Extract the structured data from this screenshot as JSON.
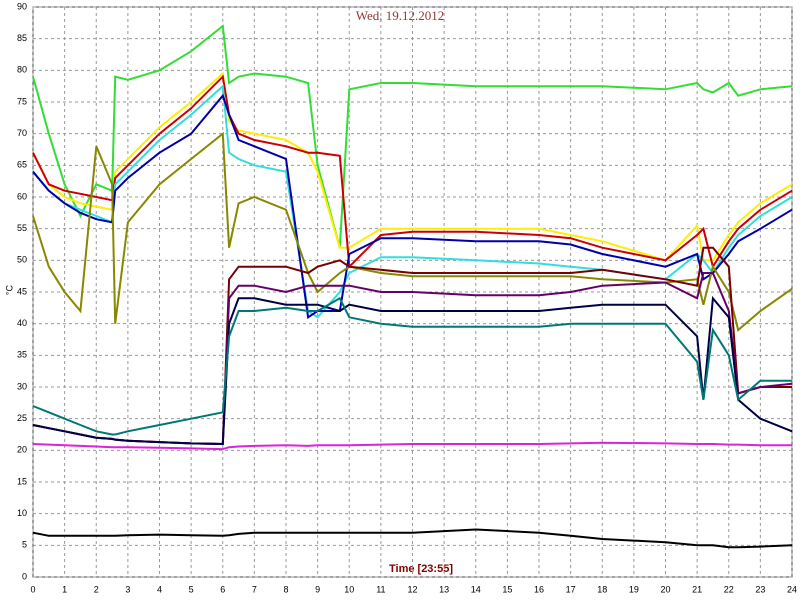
{
  "chart_data": {
    "type": "line",
    "title": "Wed, 19.12.2012",
    "xlabel": "Time [23:55]",
    "ylabel": "°C",
    "x": [
      0,
      0.5,
      1,
      1.5,
      2,
      2.5,
      2.6,
      3,
      4,
      5,
      6,
      6.2,
      6.5,
      7,
      8,
      8.7,
      9,
      9.7,
      10,
      11,
      12,
      14,
      16,
      17,
      18,
      20,
      21,
      21.2,
      21.5,
      22,
      22.3,
      23,
      24
    ],
    "series": [
      {
        "color": "#33dd33",
        "values": [
          79,
          70,
          62,
          57,
          62,
          61,
          79,
          78.5,
          80,
          83,
          87,
          78,
          79,
          79.5,
          79,
          78,
          65,
          52,
          77,
          78,
          78,
          77.5,
          77.5,
          77.5,
          77.5,
          77,
          78,
          77,
          76.5,
          78,
          76,
          77,
          77.5
        ]
      },
      {
        "color": "#ffee00",
        "values": [
          67,
          62,
          60,
          59,
          58.5,
          58,
          64,
          66,
          71,
          75,
          79.5,
          72,
          70.5,
          70,
          69,
          67,
          64,
          52,
          52,
          55,
          55,
          55,
          55,
          54,
          53,
          50,
          55.5,
          50,
          50,
          54,
          56,
          59,
          62
        ]
      },
      {
        "color": "#cc0000",
        "values": [
          67,
          62,
          61,
          60.5,
          60,
          59.5,
          63,
          65,
          70,
          74,
          79,
          73,
          70,
          69,
          68,
          67,
          67,
          66.5,
          49,
          54,
          54.5,
          54.5,
          54,
          53.5,
          52,
          50,
          54,
          55,
          49,
          53,
          55,
          58,
          61
        ]
      },
      {
        "color": "#33dddd",
        "values": [
          64,
          61,
          59,
          58,
          57,
          56,
          62,
          64,
          69,
          73,
          77.5,
          67,
          66,
          65,
          64,
          42,
          41,
          45,
          48,
          50.5,
          50.5,
          50,
          49.5,
          49,
          48.5,
          47,
          51,
          50,
          48,
          52,
          54,
          57,
          60
        ]
      },
      {
        "color": "#0000aa",
        "values": [
          64,
          61,
          59,
          57.5,
          56.5,
          56,
          61,
          63,
          67,
          70,
          76,
          73,
          69,
          68,
          66,
          41,
          42,
          42,
          51,
          53.5,
          53.5,
          53,
          53,
          52.5,
          51,
          49,
          51,
          47,
          48,
          51,
          53,
          55,
          58
        ]
      },
      {
        "color": "#888800",
        "values": [
          57,
          49,
          45,
          42,
          68,
          62,
          40,
          56,
          62,
          66,
          70,
          52,
          59,
          60,
          58,
          48,
          45,
          48,
          49,
          48,
          47.5,
          47.5,
          47.5,
          47.5,
          47,
          46.5,
          47,
          43,
          49,
          45,
          39,
          42,
          45.5
        ]
      },
      {
        "color": "#770000",
        "values": [
          24,
          23.5,
          23,
          22.5,
          22,
          21.8,
          21.7,
          21.5,
          21.3,
          21.1,
          21,
          47,
          49,
          49,
          49,
          48,
          49,
          50,
          49,
          48.5,
          48,
          48,
          48,
          48,
          48.5,
          47,
          46,
          52,
          52,
          49,
          29,
          30,
          30
        ]
      },
      {
        "color": "#660066",
        "values": [
          24,
          23.5,
          23,
          22.5,
          22,
          21.8,
          21.7,
          21.5,
          21.3,
          21.1,
          21,
          44,
          46,
          46,
          45,
          46,
          46,
          46,
          46,
          45,
          45,
          44.5,
          44.5,
          45,
          46,
          46.5,
          44,
          48,
          48,
          42,
          29,
          30,
          30.5
        ]
      },
      {
        "color": "#000044",
        "values": [
          24,
          23.5,
          23,
          22.5,
          22,
          21.8,
          21.7,
          21.5,
          21.3,
          21.1,
          21,
          40,
          44,
          44,
          43,
          43,
          43,
          42,
          43,
          42,
          42,
          42,
          42,
          42.5,
          43,
          43,
          38,
          28,
          44,
          41,
          28,
          25,
          23
        ]
      },
      {
        "color": "#007777",
        "values": [
          27,
          26,
          25,
          24,
          23,
          22.5,
          22.5,
          23,
          24,
          25,
          26,
          38,
          42,
          42,
          42.5,
          42,
          42,
          44,
          41,
          40,
          39.5,
          39.5,
          39.5,
          40,
          40,
          40,
          34,
          28,
          39,
          35,
          28,
          31,
          31
        ]
      },
      {
        "color": "#dd22dd",
        "values": [
          21,
          20.9,
          20.8,
          20.7,
          20.6,
          20.5,
          20.5,
          20.5,
          20.4,
          20.3,
          20.2,
          20.5,
          20.6,
          20.7,
          20.8,
          20.7,
          20.8,
          20.8,
          20.8,
          20.9,
          21,
          21,
          21,
          21.1,
          21.2,
          21.1,
          21,
          21,
          21,
          20.9,
          20.9,
          20.8,
          20.8
        ]
      },
      {
        "color": "#000000",
        "values": [
          7,
          6.5,
          6.5,
          6.5,
          6.5,
          6.5,
          6.5,
          6.6,
          6.7,
          6.6,
          6.5,
          6.6,
          6.8,
          7,
          7,
          7,
          7,
          7,
          7,
          7,
          7,
          7.5,
          7,
          6.5,
          6,
          5.5,
          5,
          5,
          5,
          4.7,
          4.7,
          4.8,
          5
        ]
      }
    ],
    "xlim": [
      0,
      24
    ],
    "xticks": [
      0,
      1,
      2,
      3,
      4,
      5,
      6,
      7,
      8,
      9,
      10,
      11,
      12,
      13,
      14,
      15,
      16,
      17,
      18,
      19,
      20,
      21,
      22,
      23,
      24
    ],
    "ylim": [
      0,
      90
    ],
    "yticks": [
      0,
      5,
      10,
      15,
      20,
      25,
      30,
      35,
      40,
      45,
      50,
      55,
      60,
      65,
      70,
      75,
      80,
      85,
      90
    ],
    "grid": true
  }
}
